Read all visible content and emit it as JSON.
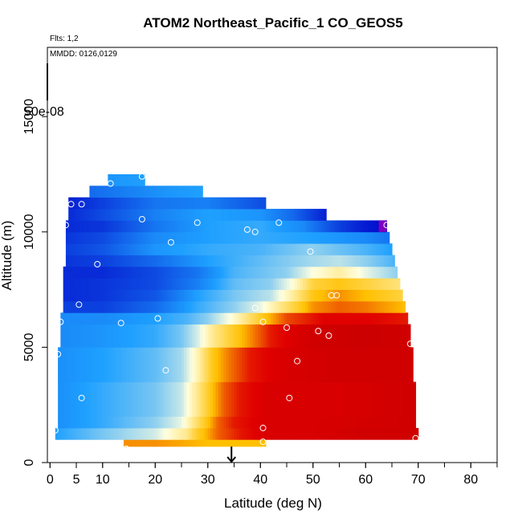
{
  "chart_data": {
    "type": "heatmap",
    "title": "ATOM2 Northeast_Pacific_1 CO_GEOS5",
    "flights_label": "Flts: 1,2",
    "date_label": "MMDD: 0126,0129",
    "legend_value": "50e-08",
    "xlabel": "Latitude (deg N)",
    "ylabel": "Altitude (m)",
    "xlim": [
      -0.5,
      85
    ],
    "ylim": [
      0,
      18000
    ],
    "xticks": [
      0,
      5,
      10,
      20,
      30,
      40,
      50,
      60,
      70,
      80
    ],
    "xtick_labels": [
      "0",
      "5",
      "10",
      "20",
      "30",
      "40",
      "50",
      "60",
      "70",
      "80"
    ],
    "yticks": [
      0,
      5000,
      10000,
      15000
    ],
    "ytick_labels": [
      "0",
      "5000",
      "10000",
      "15000"
    ],
    "marker_latitude": 34.5,
    "colors": {
      "low": "#0000c8",
      "mid_low": "#1ea0ff",
      "mid": "#ffffe0",
      "mid_high": "#ffc000",
      "high": "#e00000",
      "max": "#8000c0"
    },
    "bands": [
      {
        "alt_min": 700,
        "alt_max": 1200,
        "lat_min": 14,
        "lat_max": 41,
        "v": [
          [
            14,
            0.76
          ],
          [
            20,
            0.76
          ],
          [
            25,
            0.74
          ],
          [
            30,
            0.72
          ],
          [
            35,
            0.72
          ],
          [
            41,
            0.72
          ]
        ]
      },
      {
        "alt_min": 1000,
        "alt_max": 1500,
        "lat_min": 1,
        "lat_max": 70,
        "v": [
          [
            1,
            0.3
          ],
          [
            10,
            0.38
          ],
          [
            20,
            0.46
          ],
          [
            26,
            0.58
          ],
          [
            28,
            0.68
          ],
          [
            32,
            0.8
          ],
          [
            36,
            0.86
          ],
          [
            42,
            0.9
          ],
          [
            50,
            0.9
          ],
          [
            60,
            0.92
          ],
          [
            70,
            0.92
          ]
        ]
      },
      {
        "alt_min": 1500,
        "alt_max": 2000,
        "lat_min": 1.5,
        "lat_max": 69.5,
        "v": [
          [
            1.5,
            0.27
          ],
          [
            10,
            0.32
          ],
          [
            20,
            0.4
          ],
          [
            25,
            0.48
          ],
          [
            28,
            0.62
          ],
          [
            32,
            0.8
          ],
          [
            35,
            0.86
          ],
          [
            42,
            0.9
          ],
          [
            50,
            0.9
          ],
          [
            69.5,
            0.92
          ]
        ]
      },
      {
        "alt_min": 2000,
        "alt_max": 3500,
        "lat_min": 1.5,
        "lat_max": 69.5,
        "v": [
          [
            1.5,
            0.27
          ],
          [
            10,
            0.32
          ],
          [
            20,
            0.38
          ],
          [
            25,
            0.45
          ],
          [
            28,
            0.58
          ],
          [
            31,
            0.72
          ],
          [
            33,
            0.8
          ],
          [
            36,
            0.86
          ],
          [
            42,
            0.9
          ],
          [
            55,
            0.9
          ],
          [
            69.5,
            0.92
          ]
        ]
      },
      {
        "alt_min": 3500,
        "alt_max": 5000,
        "lat_min": 1.5,
        "lat_max": 69,
        "v": [
          [
            1.5,
            0.27
          ],
          [
            10,
            0.3
          ],
          [
            20,
            0.36
          ],
          [
            25,
            0.42
          ],
          [
            28,
            0.54
          ],
          [
            31,
            0.7
          ],
          [
            34,
            0.78
          ],
          [
            38,
            0.86
          ],
          [
            45,
            0.9
          ],
          [
            55,
            0.92
          ],
          [
            69,
            0.92
          ]
        ]
      },
      {
        "alt_min": 5000,
        "alt_max": 6000,
        "lat_min": 2,
        "lat_max": 68.5,
        "v": [
          [
            2,
            0.26
          ],
          [
            10,
            0.28
          ],
          [
            20,
            0.32
          ],
          [
            25,
            0.38
          ],
          [
            28,
            0.46
          ],
          [
            31,
            0.58
          ],
          [
            34,
            0.66
          ],
          [
            38,
            0.76
          ],
          [
            42,
            0.86
          ],
          [
            50,
            0.92
          ],
          [
            60,
            0.93
          ],
          [
            68.5,
            0.92
          ]
        ]
      },
      {
        "alt_min": 6000,
        "alt_max": 6500,
        "lat_min": 2,
        "lat_max": 68,
        "v": [
          [
            2,
            0.26
          ],
          [
            10,
            0.26
          ],
          [
            20,
            0.3
          ],
          [
            26,
            0.34
          ],
          [
            30,
            0.4
          ],
          [
            35,
            0.52
          ],
          [
            40,
            0.68
          ],
          [
            45,
            0.82
          ],
          [
            52,
            0.88
          ],
          [
            60,
            0.88
          ],
          [
            68,
            0.86
          ]
        ]
      },
      {
        "alt_min": 6500,
        "alt_max": 7000,
        "lat_min": 2.5,
        "lat_max": 67.5,
        "v": [
          [
            2.5,
            0.12
          ],
          [
            10,
            0.12
          ],
          [
            20,
            0.2
          ],
          [
            28,
            0.32
          ],
          [
            35,
            0.4
          ],
          [
            40,
            0.48
          ],
          [
            45,
            0.62
          ],
          [
            50,
            0.76
          ],
          [
            55,
            0.8
          ],
          [
            60,
            0.78
          ],
          [
            67.5,
            0.72
          ]
        ]
      },
      {
        "alt_min": 7000,
        "alt_max": 7500,
        "lat_min": 2.5,
        "lat_max": 67,
        "v": [
          [
            2.5,
            0.08
          ],
          [
            10,
            0.1
          ],
          [
            20,
            0.16
          ],
          [
            28,
            0.3
          ],
          [
            35,
            0.38
          ],
          [
            42,
            0.44
          ],
          [
            46,
            0.56
          ],
          [
            50,
            0.7
          ],
          [
            55,
            0.76
          ],
          [
            60,
            0.72
          ],
          [
            67,
            0.66
          ]
        ]
      },
      {
        "alt_min": 7500,
        "alt_max": 8000,
        "lat_min": 2.5,
        "lat_max": 66.5,
        "v": [
          [
            2.5,
            0.08
          ],
          [
            10,
            0.1
          ],
          [
            20,
            0.14
          ],
          [
            28,
            0.24
          ],
          [
            35,
            0.36
          ],
          [
            42,
            0.4
          ],
          [
            46,
            0.5
          ],
          [
            50,
            0.66
          ],
          [
            55,
            0.7
          ],
          [
            60,
            0.66
          ],
          [
            66.5,
            0.6
          ]
        ]
      },
      {
        "alt_min": 8000,
        "alt_max": 8500,
        "lat_min": 2.5,
        "lat_max": 66,
        "v": [
          [
            2.5,
            0.08
          ],
          [
            10,
            0.08
          ],
          [
            20,
            0.14
          ],
          [
            28,
            0.22
          ],
          [
            35,
            0.34
          ],
          [
            45,
            0.4
          ],
          [
            50,
            0.5
          ],
          [
            55,
            0.56
          ],
          [
            60,
            0.48
          ],
          [
            66,
            0.4
          ]
        ]
      },
      {
        "alt_min": 8500,
        "alt_max": 9000,
        "lat_min": 3,
        "lat_max": 65.5,
        "v": [
          [
            3,
            0.1
          ],
          [
            10,
            0.12
          ],
          [
            20,
            0.2
          ],
          [
            30,
            0.3
          ],
          [
            40,
            0.36
          ],
          [
            50,
            0.42
          ],
          [
            55,
            0.44
          ],
          [
            60,
            0.4
          ],
          [
            65.5,
            0.34
          ]
        ]
      },
      {
        "alt_min": 9000,
        "alt_max": 9500,
        "lat_min": 3,
        "lat_max": 65,
        "v": [
          [
            3,
            0.12
          ],
          [
            10,
            0.16
          ],
          [
            20,
            0.28
          ],
          [
            30,
            0.32
          ],
          [
            40,
            0.34
          ],
          [
            50,
            0.4
          ],
          [
            60,
            0.34
          ],
          [
            65,
            0.3
          ]
        ]
      },
      {
        "alt_min": 9500,
        "alt_max": 10000,
        "lat_min": 3,
        "lat_max": 64.5,
        "v": [
          [
            3,
            0.1
          ],
          [
            10,
            0.14
          ],
          [
            20,
            0.26
          ],
          [
            30,
            0.3
          ],
          [
            40,
            0.32
          ],
          [
            50,
            0.3
          ],
          [
            60,
            0.26
          ],
          [
            64.5,
            0.22
          ]
        ]
      },
      {
        "alt_min": 10000,
        "alt_max": 10500,
        "lat_min": 3,
        "lat_max": 64,
        "v": [
          [
            3,
            0.08
          ],
          [
            10,
            0.1
          ],
          [
            20,
            0.22
          ],
          [
            30,
            0.3
          ],
          [
            40,
            0.32
          ],
          [
            48,
            0.26
          ],
          [
            55,
            0.12
          ],
          [
            60,
            0.05
          ],
          [
            64,
            0.02
          ]
        ]
      },
      {
        "alt_min": 10500,
        "alt_max": 11000,
        "lat_min": 3.5,
        "lat_max": 52.5,
        "v": [
          [
            3.5,
            0.08
          ],
          [
            10,
            0.14
          ],
          [
            20,
            0.24
          ],
          [
            30,
            0.3
          ],
          [
            40,
            0.28
          ],
          [
            46,
            0.2
          ],
          [
            52.5,
            0.06
          ]
        ]
      },
      {
        "alt_min": 11000,
        "alt_max": 11500,
        "lat_min": 3.5,
        "lat_max": 41,
        "v": [
          [
            3.5,
            0.06
          ],
          [
            10,
            0.12
          ],
          [
            20,
            0.22
          ],
          [
            30,
            0.24
          ],
          [
            41,
            0.14
          ]
        ]
      },
      {
        "alt_min": 11500,
        "alt_max": 12000,
        "lat_min": 7.5,
        "lat_max": 29,
        "v": [
          [
            7.5,
            0.2
          ],
          [
            15,
            0.24
          ],
          [
            22,
            0.28
          ],
          [
            29,
            0.3
          ]
        ]
      },
      {
        "alt_min": 12000,
        "alt_max": 12500,
        "lat_min": 11,
        "lat_max": 18,
        "v": [
          [
            11,
            0.28
          ],
          [
            18,
            0.3
          ]
        ]
      }
    ],
    "points": [
      [
        14.5,
        600
      ],
      [
        40.5,
        900
      ],
      [
        69.5,
        1050
      ],
      [
        1,
        1400
      ],
      [
        40.5,
        1500
      ],
      [
        6,
        2800
      ],
      [
        45.5,
        2800
      ],
      [
        22,
        4000
      ],
      [
        47,
        4400
      ],
      [
        1.5,
        4700
      ],
      [
        53,
        5500
      ],
      [
        68.5,
        5150
      ],
      [
        51,
        5700
      ],
      [
        45,
        5850
      ],
      [
        2,
        6100
      ],
      [
        13.5,
        6050
      ],
      [
        20.5,
        6250
      ],
      [
        40.5,
        6100
      ],
      [
        39,
        6700
      ],
      [
        5.5,
        6850
      ],
      [
        53.5,
        7250
      ],
      [
        54.5,
        7250
      ],
      [
        9,
        8600
      ],
      [
        49.5,
        9150
      ],
      [
        23,
        9550
      ],
      [
        37.5,
        10100
      ],
      [
        39,
        10000
      ],
      [
        3,
        10300
      ],
      [
        17.5,
        10550
      ],
      [
        28,
        10400
      ],
      [
        43.5,
        10400
      ],
      [
        64,
        10300
      ],
      [
        4,
        11200
      ],
      [
        6,
        11200
      ],
      [
        11.5,
        12100
      ],
      [
        17.5,
        12400
      ]
    ]
  }
}
